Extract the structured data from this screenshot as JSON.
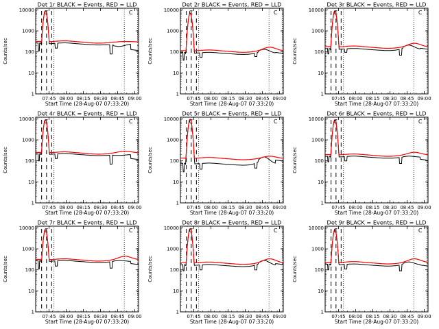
{
  "colors": {
    "events": "#000000",
    "lld": "#ff0000",
    "frame": "#000000",
    "marker_dash": "#000000"
  },
  "common": {
    "ylabel": "Counts/sec",
    "xlabel": "Start Time (28-Aug-07 07:33:20)",
    "yticks": [
      "1",
      "10",
      "100",
      "1000",
      "10000"
    ],
    "marker_glyph": "C"
  },
  "chart_data": [
    {
      "type": "line",
      "title": "Det 1r BLACK = Events, RED = LLD",
      "y_scale": "log",
      "ylim": [
        1,
        12000
      ],
      "xlim": [
        "07:33:20",
        "09:03:20"
      ],
      "xticks": [
        "07:45",
        "08:00",
        "08:15",
        "08:30",
        "08:45",
        "09:00"
      ],
      "peak": 9000,
      "events_base": 240,
      "lld_base": 300,
      "events_late": 130,
      "lld_late": 280,
      "events_early_dip": 110,
      "events_late_tail": 80,
      "events_mid_dip": 150
    },
    {
      "type": "line",
      "title": "Det 2r BLACK = Events, RED = LLD",
      "y_scale": "log",
      "ylim": [
        1,
        12000
      ],
      "xlim": [
        "07:33:20",
        "09:03:20"
      ],
      "xticks": [
        "07:45",
        "08:00",
        "08:15",
        "08:30",
        "08:45",
        "09:00"
      ],
      "peak": 7000,
      "events_base": 85,
      "lld_base": 110,
      "events_late": 95,
      "lld_late": 150,
      "events_early_dip": 40,
      "events_late_tail": 60,
      "events_mid_dip": 55
    },
    {
      "type": "line",
      "title": "Det 3r BLACK = Events, RED = LLD",
      "y_scale": "log",
      "ylim": [
        1,
        12000
      ],
      "xlim": [
        "07:33:20",
        "09:03:20"
      ],
      "xticks": [
        "07:45",
        "08:00",
        "08:15",
        "08:30",
        "08:45",
        "09:00"
      ],
      "peak": 9000,
      "events_base": 130,
      "lld_base": 170,
      "events_late": 150,
      "lld_late": 230,
      "events_early_dip": 80,
      "events_late_tail": 70,
      "events_mid_dip": 95
    },
    {
      "type": "line",
      "title": "Det 4r BLACK = Events, RED = LLD",
      "y_scale": "log",
      "ylim": [
        1,
        12000
      ],
      "xlim": [
        "07:33:20",
        "09:03:20"
      ],
      "xticks": [
        "07:45",
        "08:00",
        "08:15",
        "08:30",
        "08:45",
        "09:00"
      ],
      "peak": 9000,
      "events_base": 200,
      "lld_base": 240,
      "events_late": 130,
      "lld_late": 260,
      "events_early_dip": 100,
      "events_late_tail": 70,
      "events_mid_dip": 130
    },
    {
      "type": "line",
      "title": "Det 5r BLACK = Events, RED = LLD",
      "y_scale": "log",
      "ylim": [
        1,
        12000
      ],
      "xlim": [
        "07:33:20",
        "09:03:20"
      ],
      "xticks": [
        "07:45",
        "08:00",
        "08:15",
        "08:30",
        "08:45",
        "09:00"
      ],
      "peak": 9500,
      "events_base": 70,
      "lld_base": 130,
      "events_late": 110,
      "lld_late": 150,
      "events_early_dip": 30,
      "events_late_tail": 45,
      "events_mid_dip": 40
    },
    {
      "type": "line",
      "title": "Det 6r BLACK = Events, RED = LLD",
      "y_scale": "log",
      "ylim": [
        1,
        12000
      ],
      "xlim": [
        "07:33:20",
        "09:03:20"
      ],
      "xticks": [
        "07:45",
        "08:00",
        "08:15",
        "08:30",
        "08:45",
        "09:00"
      ],
      "peak": 9000,
      "events_base": 150,
      "lld_base": 190,
      "events_late": 120,
      "lld_late": 230,
      "events_early_dip": 90,
      "events_late_tail": 75,
      "events_mid_dip": 100
    },
    {
      "type": "line",
      "title": "Det 7r BLACK = Events, RED = LLD",
      "y_scale": "log",
      "ylim": [
        1,
        12000
      ],
      "xlim": [
        "07:33:20",
        "09:03:20"
      ],
      "xticks": [
        "07:45",
        "08:00",
        "08:15",
        "08:30",
        "08:45",
        "09:00"
      ],
      "peak": 8000,
      "events_base": 250,
      "lld_base": 300,
      "events_late": 200,
      "lld_late": 400,
      "events_early_dip": 110,
      "events_late_tail": 120,
      "events_mid_dip": 150
    },
    {
      "type": "line",
      "title": "Det 8r BLACK = Events, RED = LLD",
      "y_scale": "log",
      "ylim": [
        1,
        12000
      ],
      "xlim": [
        "07:33:20",
        "09:03:20"
      ],
      "xticks": [
        "07:45",
        "08:00",
        "08:15",
        "08:30",
        "08:45",
        "09:00"
      ],
      "peak": 9000,
      "events_base": 160,
      "lld_base": 210,
      "events_late": 200,
      "lld_late": 300,
      "events_early_dip": 90,
      "events_late_tail": 100,
      "events_mid_dip": 100
    },
    {
      "type": "line",
      "title": "Det 9r BLACK = Events, RED = LLD",
      "y_scale": "log",
      "ylim": [
        1,
        12000
      ],
      "xlim": [
        "07:33:20",
        "09:03:20"
      ],
      "xticks": [
        "07:45",
        "08:00",
        "08:15",
        "08:30",
        "08:45",
        "09:00"
      ],
      "peak": 8000,
      "events_base": 170,
      "lld_base": 220,
      "events_late": 170,
      "lld_late": 300,
      "events_early_dip": 100,
      "events_late_tail": 90,
      "events_mid_dip": 110
    }
  ]
}
